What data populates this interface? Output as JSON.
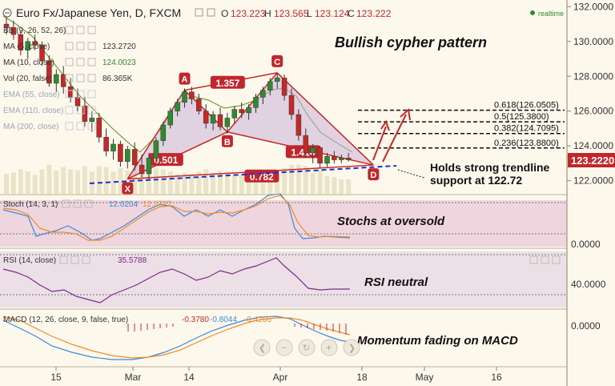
{
  "header": {
    "symbol": "Euro Fx/Japanese Yen, D, FXCM",
    "o_label": "O",
    "o_value": "123.223",
    "h_label": "H",
    "h_value": "123.565",
    "l_label": "L",
    "l_value": "123.124",
    "c_label": "C",
    "c_value": "123.222",
    "realtime": "realtime"
  },
  "colors": {
    "background": "#fdf8ec",
    "up_candle": "#2e8b2e",
    "down_candle": "#c62828",
    "pattern_line": "#c62828",
    "pattern_fill": "#c9b2d8",
    "label_badge": "#c0272d",
    "trendline": "#1a2fd0",
    "price_badge": "#c0272d",
    "stoch_band": "#e8c9d9",
    "rsi_band": "#e3cfe3",
    "volume": "#d9d3a8",
    "ma_line": "#7a9a3a",
    "rsi_line": "#7a2a8a",
    "macd_line": "#3a8ad8",
    "signal_line": "#f08a2a",
    "stoch_k": "#3a8ad8",
    "stoch_d": "#f08a2a"
  },
  "legend": [
    {
      "label": "BB (9, 26, 52, 26)",
      "value": ""
    },
    {
      "label": "MA (5, close)",
      "value": "123.2720"
    },
    {
      "label": "MA (10, close)",
      "value": "124.0023"
    },
    {
      "label": "Vol (20, false)",
      "value": "86.365K"
    },
    {
      "label": "EMA (55, close)",
      "value": ""
    },
    {
      "label": "EMA (110, close)",
      "value": ""
    },
    {
      "label": "MA (200, close)",
      "value": ""
    }
  ],
  "annotations": {
    "title": "Bullish cypher pattern",
    "trendline_note_1": "Holds strong trendline",
    "trendline_note_2": "support at 122.72",
    "stoch_note": "Stochs at oversold",
    "rsi_note": "RSI neutral",
    "macd_note": "Momentum fading on MACD"
  },
  "indicators": {
    "stoch": {
      "label": "Stoch (14, 3, 1)",
      "k": "12.0204",
      "d": "12.2727"
    },
    "rsi": {
      "label": "RSI (14, close)",
      "value": "35.5788"
    },
    "macd": {
      "label": "MACD (12, 26, close, 9, false, true)",
      "hist": "-0.3780",
      "macd": "-0.8044",
      "signal": "-0.4266"
    }
  },
  "nav_icons": [
    "chevron-left",
    "minus",
    "reset",
    "plus",
    "chevron-right"
  ],
  "chart_data": {
    "type": "candlestick",
    "title": "Euro Fx/Japanese Yen, D, FXCM",
    "timeframe": "D",
    "y_axis": {
      "min": 121.2,
      "max": 132.2,
      "ticks": [
        "132.0000",
        "130.0000",
        "128.0000",
        "126.0000",
        "124.0000",
        "122.0000"
      ]
    },
    "x_ticks": [
      "15",
      "Mar",
      "14",
      "Apr",
      "18",
      "May",
      "16"
    ],
    "current_price": "123.2220",
    "pattern": {
      "name": "Bullish cypher",
      "points": [
        {
          "label": "X",
          "price": 122.1
        },
        {
          "label": "A",
          "price": 127.2
        },
        {
          "label": "B",
          "price": 124.8
        },
        {
          "label": "C",
          "price": 128.2
        },
        {
          "label": "D",
          "price": 122.9
        }
      ],
      "ratios": [
        {
          "label": "1.357"
        },
        {
          "label": "0.501"
        },
        {
          "label": "1.414"
        },
        {
          "label": "0.782"
        }
      ]
    },
    "fib_levels": [
      {
        "label": "0.618(126.0505)",
        "price": 126.0505
      },
      {
        "label": "0.5(125.3800)",
        "price": 125.38
      },
      {
        "label": "0.382(124.7095)",
        "price": 124.7095
      },
      {
        "label": "0.236(123.8800)",
        "price": 123.88
      }
    ],
    "candles": [
      [
        131.0,
        131.4,
        130.4,
        130.8
      ],
      [
        130.8,
        131.2,
        130.1,
        130.4
      ],
      [
        130.4,
        130.6,
        129.2,
        129.5
      ],
      [
        129.5,
        130.2,
        129.0,
        130.0
      ],
      [
        130.0,
        130.4,
        129.5,
        129.8
      ],
      [
        129.8,
        130.0,
        128.6,
        128.9
      ],
      [
        128.9,
        129.2,
        127.4,
        127.6
      ],
      [
        127.6,
        128.4,
        127.1,
        128.1
      ],
      [
        128.1,
        128.6,
        127.0,
        127.4
      ],
      [
        127.4,
        127.9,
        126.5,
        126.8
      ],
      [
        126.8,
        127.3,
        126.0,
        126.3
      ],
      [
        126.3,
        126.8,
        125.1,
        125.4
      ],
      [
        125.4,
        126.0,
        124.8,
        125.6
      ],
      [
        125.6,
        125.9,
        124.2,
        124.5
      ],
      [
        124.5,
        125.0,
        123.4,
        123.7
      ],
      [
        123.7,
        124.4,
        123.2,
        124.1
      ],
      [
        124.1,
        124.3,
        122.8,
        123.1
      ],
      [
        123.1,
        124.0,
        122.7,
        123.8
      ],
      [
        123.8,
        124.2,
        122.6,
        122.9
      ],
      [
        122.9,
        123.5,
        122.2,
        122.4
      ],
      [
        122.4,
        123.6,
        122.1,
        123.3
      ],
      [
        123.3,
        124.5,
        123.0,
        124.3
      ],
      [
        124.3,
        125.4,
        124.0,
        125.2
      ],
      [
        125.2,
        126.2,
        125.0,
        126.0
      ],
      [
        126.0,
        126.7,
        125.7,
        126.5
      ],
      [
        126.5,
        127.3,
        126.2,
        127.1
      ],
      [
        127.1,
        127.4,
        126.4,
        126.7
      ],
      [
        126.7,
        127.0,
        125.8,
        126.0
      ],
      [
        126.0,
        126.4,
        125.0,
        125.3
      ],
      [
        125.3,
        126.0,
        124.9,
        125.8
      ],
      [
        125.8,
        126.2,
        124.9,
        125.1
      ],
      [
        125.1,
        125.9,
        124.7,
        125.6
      ],
      [
        125.6,
        126.3,
        125.3,
        126.1
      ],
      [
        126.1,
        126.5,
        125.6,
        125.9
      ],
      [
        125.9,
        126.4,
        125.5,
        126.2
      ],
      [
        126.2,
        127.0,
        125.9,
        126.8
      ],
      [
        126.8,
        127.4,
        126.4,
        127.2
      ],
      [
        127.2,
        127.9,
        126.9,
        127.7
      ],
      [
        127.7,
        128.2,
        127.3,
        127.9
      ],
      [
        127.9,
        128.1,
        126.6,
        126.9
      ],
      [
        126.9,
        127.3,
        125.5,
        125.8
      ],
      [
        125.8,
        126.1,
        124.3,
        124.6
      ],
      [
        124.6,
        125.0,
        123.3,
        123.6
      ],
      [
        123.6,
        124.1,
        123.0,
        123.9
      ],
      [
        123.9,
        124.0,
        122.7,
        123.0
      ],
      [
        123.0,
        123.6,
        122.8,
        123.4
      ],
      [
        123.4,
        123.7,
        123.0,
        123.2
      ],
      [
        123.2,
        123.5,
        123.0,
        123.3
      ],
      [
        123.3,
        123.6,
        123.1,
        123.2
      ]
    ]
  }
}
